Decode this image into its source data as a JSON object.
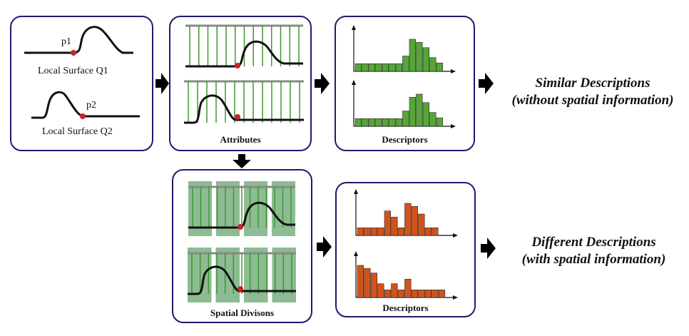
{
  "panel_local": {
    "point1": "p1",
    "surface1": "Local Surface Q1",
    "point2": "p2",
    "surface2": "Local Surface Q2"
  },
  "panel_attributes": {
    "caption": "Attributes"
  },
  "panel_descriptors_top": {
    "caption": "Descriptors"
  },
  "panel_spatial": {
    "caption": "Spatial Divisons"
  },
  "panel_descriptors_bottom": {
    "caption": "Descriptors"
  },
  "outcome_similar": {
    "line1": "Similar Descriptions",
    "line2": "(without spatial information)"
  },
  "outcome_different": {
    "line1": "Different Descriptions",
    "line2": "(with spatial information)"
  },
  "colors": {
    "panel_border": "#1f1a6e",
    "attribute_lines": "#3a9a2a",
    "green_bars": "#55a637",
    "orange_bars": "#d0531c",
    "point": "#cc2222",
    "division_fill": "#8dbb93"
  },
  "histograms": {
    "similar": [
      [
        1,
        1,
        1,
        1,
        1,
        1,
        1,
        2,
        4.2,
        3.8,
        3.1,
        1.8,
        1.1
      ],
      [
        1,
        1,
        1,
        1,
        1,
        1,
        1,
        2,
        3.8,
        4.2,
        3.1,
        1.8,
        1.1
      ]
    ],
    "different": [
      [
        1,
        1,
        1,
        1,
        3.2,
        2.4,
        1,
        4.2,
        3.8,
        2.8,
        1,
        1
      ],
      [
        4.2,
        3.8,
        3.2,
        1.8,
        1,
        1.8,
        1,
        2.4,
        1,
        1,
        1,
        1,
        1
      ]
    ]
  }
}
